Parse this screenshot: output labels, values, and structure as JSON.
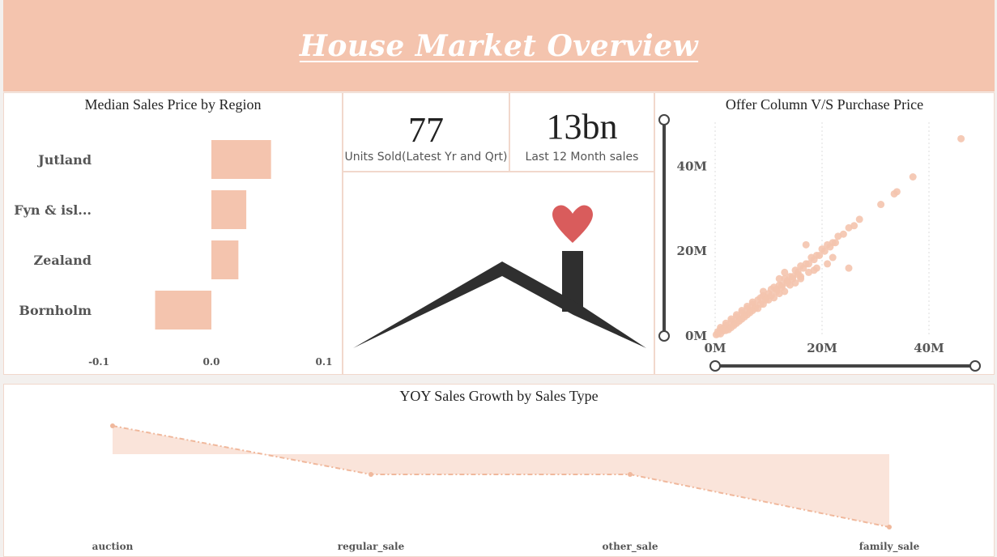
{
  "header": {
    "title": "House Market Overview"
  },
  "median_chart": {
    "title": "Median Sales Price by Region",
    "x_ticks": [
      "-0.1",
      "0.0",
      "0.1"
    ]
  },
  "kpis": [
    {
      "value": "77",
      "label": "Units Sold(Latest Yr and Qrt)"
    },
    {
      "value": "13bn",
      "label": "Last 12 Month sales"
    }
  ],
  "scatter_chart": {
    "title": "Offer Column V/S Purchase Price",
    "x_ticks": [
      "0M",
      "20M",
      "40M"
    ],
    "y_ticks": [
      "0M",
      "20M",
      "40M"
    ]
  },
  "growth_chart": {
    "title": "YOY Sales Growth by Sales Type"
  },
  "colors": {
    "accent": "#f4c4ae",
    "bar": "#f4c4ae",
    "heart": "#d95c5c",
    "roof": "#2f2f2f"
  },
  "chart_data": [
    {
      "type": "bar",
      "title": "Median Sales Price by Region",
      "orientation": "horizontal",
      "categories": [
        "Jutland",
        "Fyn & isl...",
        "Zealand",
        "Bornholm"
      ],
      "values": [
        0.053,
        0.031,
        0.024,
        -0.05
      ],
      "xlim": [
        -0.1,
        0.1
      ]
    },
    {
      "type": "scatter",
      "title": "Offer Column V/S Purchase Price",
      "xlim": [
        0,
        50
      ],
      "ylim": [
        0,
        50
      ],
      "x_unit": "M",
      "y_unit": "M",
      "points": [
        [
          46,
          46.5
        ],
        [
          37,
          37.5
        ],
        [
          34,
          34
        ],
        [
          33.5,
          33.5
        ],
        [
          31,
          31
        ],
        [
          27,
          27.5
        ],
        [
          26,
          26
        ],
        [
          25,
          25.5
        ],
        [
          24,
          24
        ],
        [
          23,
          23.5
        ],
        [
          22,
          22
        ],
        [
          21,
          21.5
        ],
        [
          20,
          20.5
        ],
        [
          19,
          19
        ],
        [
          18,
          18.5
        ],
        [
          17,
          17
        ],
        [
          16,
          16.5
        ],
        [
          15,
          15.5
        ],
        [
          14,
          14
        ],
        [
          13,
          13.5
        ],
        [
          12,
          12
        ],
        [
          11,
          11.5
        ],
        [
          10,
          10
        ],
        [
          9,
          9.5
        ],
        [
          8,
          8.5
        ],
        [
          7.5,
          7
        ],
        [
          7,
          7.5
        ],
        [
          6.5,
          6
        ],
        [
          6,
          6.5
        ],
        [
          5.5,
          5
        ],
        [
          5,
          5.5
        ],
        [
          4.5,
          4
        ],
        [
          4,
          4.5
        ],
        [
          3.5,
          3
        ],
        [
          3,
          3.5
        ],
        [
          2.5,
          2
        ],
        [
          2,
          2.5
        ],
        [
          1.5,
          1.2
        ],
        [
          1,
          1.5
        ],
        [
          0.5,
          0.5
        ],
        [
          0.2,
          0.3
        ],
        [
          8.5,
          9
        ],
        [
          9.5,
          9
        ],
        [
          10.5,
          11
        ],
        [
          11.5,
          11
        ],
        [
          12.5,
          12
        ],
        [
          13.5,
          13
        ],
        [
          14.5,
          14
        ],
        [
          15.5,
          15
        ],
        [
          16.5,
          16
        ],
        [
          17.5,
          17
        ],
        [
          18.5,
          18
        ],
        [
          19.5,
          19
        ],
        [
          20.5,
          20
        ],
        [
          21.5,
          21
        ],
        [
          22.5,
          22
        ],
        [
          6,
          5
        ],
        [
          7,
          6
        ],
        [
          5,
          4
        ],
        [
          4,
          3
        ],
        [
          3,
          2
        ],
        [
          2,
          1.3
        ],
        [
          12,
          10
        ],
        [
          13,
          10.5
        ],
        [
          11,
          9
        ],
        [
          9,
          7.5
        ],
        [
          10,
          8.5
        ],
        [
          8,
          6.5
        ],
        [
          16,
          13.5
        ],
        [
          15,
          12.5
        ],
        [
          17,
          21.5
        ],
        [
          22,
          18.5
        ],
        [
          19,
          16
        ],
        [
          13,
          15
        ],
        [
          12,
          13.5
        ],
        [
          9,
          10.5
        ],
        [
          18.5,
          15.5
        ],
        [
          25,
          16
        ],
        [
          21,
          17
        ],
        [
          14,
          12
        ],
        [
          16,
          14
        ],
        [
          17.5,
          15
        ],
        [
          7,
          8
        ],
        [
          6,
          7
        ],
        [
          5,
          6
        ],
        [
          4,
          5
        ],
        [
          3,
          4
        ],
        [
          2,
          3
        ],
        [
          1,
          2
        ],
        [
          0.5,
          1
        ],
        [
          1,
          0.5
        ],
        [
          1.5,
          1.8
        ],
        [
          2.5,
          1.5
        ],
        [
          3.5,
          2.5
        ],
        [
          4.5,
          3.5
        ],
        [
          5.5,
          4.5
        ],
        [
          6.5,
          5.5
        ],
        [
          7.5,
          6.5
        ],
        [
          8.5,
          7.5
        ],
        [
          9.5,
          8.5
        ],
        [
          10.5,
          9.5
        ],
        [
          11.5,
          10.5
        ],
        [
          12.5,
          11.5
        ],
        [
          13.5,
          12.5
        ],
        [
          14.5,
          13.5
        ],
        [
          15.5,
          14.5
        ]
      ]
    },
    {
      "type": "area",
      "title": "YOY Sales Growth by Sales Type",
      "categories": [
        "auction",
        "regular_sale",
        "other_sale",
        "family_sale"
      ],
      "values": [
        0.35,
        -0.25,
        -0.25,
        -0.9
      ],
      "baseline": 0
    }
  ]
}
